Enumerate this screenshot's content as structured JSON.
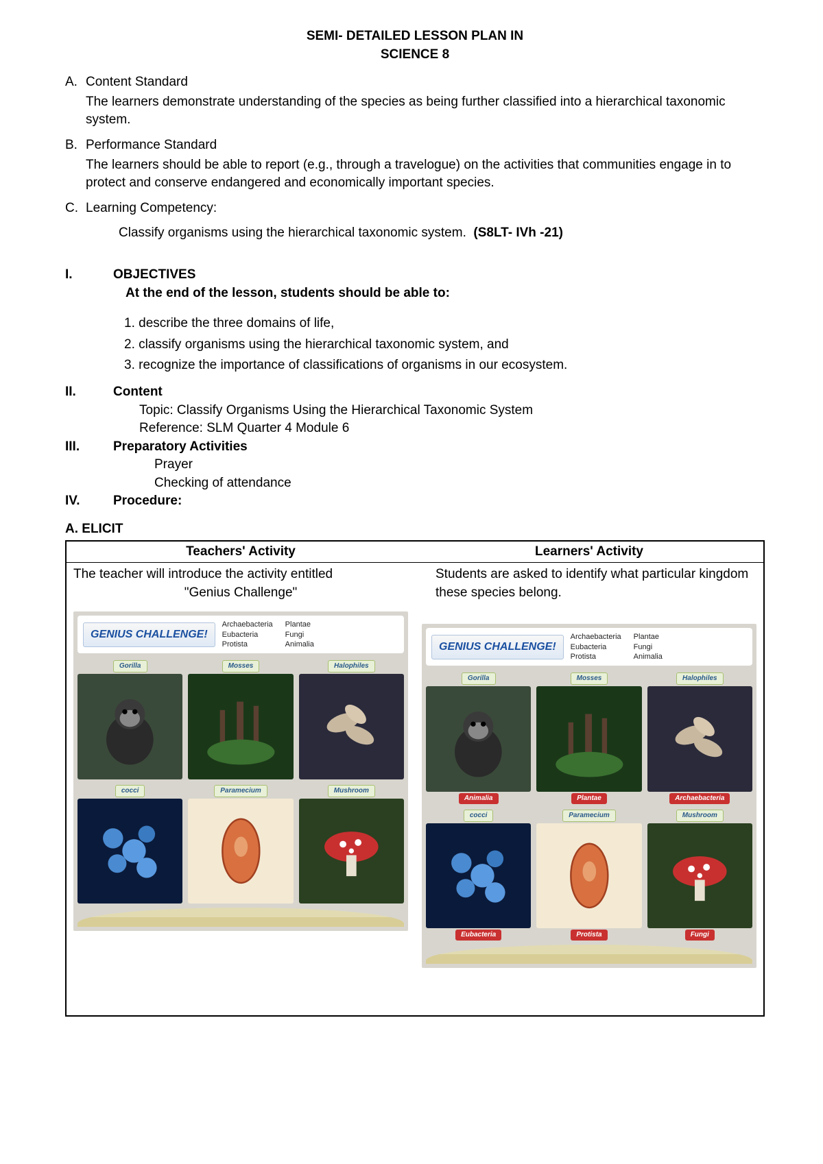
{
  "title": {
    "line1": "SEMI- DETAILED LESSON PLAN IN",
    "line2": "SCIENCE 8"
  },
  "standards": [
    {
      "letter": "A.",
      "label": "Content Standard",
      "text": "The learners demonstrate understanding of the species as being further classified into a hierarchical taxonomic system."
    },
    {
      "letter": "B.",
      "label": "Performance Standard",
      "text": "The learners should be able to report (e.g., through a travelogue) on the activities that communities engage in to protect and conserve endangered and economically important species."
    },
    {
      "letter": "C.",
      "label": "Learning Competency:",
      "text": ""
    }
  ],
  "competency": {
    "text": "Classify organisms using the hierarchical taxonomic system.",
    "code": "(S8LT- IVh -21)"
  },
  "sections": {
    "objectives": {
      "num": "I.",
      "label": "OBJECTIVES",
      "intro": "At the end of the lesson, students should be able to:",
      "items": [
        "1. describe the three domains of life,",
        "2. classify organisms using the hierarchical taxonomic system, and",
        "3. recognize the importance of classifications of organisms in our ecosystem."
      ]
    },
    "content": {
      "num": "II.",
      "label": "Content",
      "topic": "Topic: Classify Organisms Using the Hierarchical Taxonomic System",
      "reference": "Reference: SLM Quarter 4 Module 6"
    },
    "prep": {
      "num": "III.",
      "label": "Preparatory Activities",
      "items": [
        "Prayer",
        "Checking of attendance"
      ]
    },
    "procedure": {
      "num": "IV.",
      "label": "Procedure:"
    }
  },
  "elicit": {
    "label": "A. ELICIT",
    "headers": {
      "teacher": "Teachers' Activity",
      "learner": "Learners' Activity"
    },
    "teacher_text": "The teacher will introduce the activity entitled",
    "teacher_sub": "\"Genius Challenge\"",
    "learner_text": "Students are asked to identify what particular kingdom these species belong."
  },
  "challenge": {
    "title": "GENIUS CHALLENGE!",
    "kingdoms_col1": [
      "Archaebacteria",
      "Eubacteria",
      "Protista"
    ],
    "kingdoms_col2": [
      "Plantae",
      "Fungi",
      "Animalia"
    ],
    "tiles": [
      {
        "name": "Gorilla",
        "answer": "Animalia",
        "bg": "#3a4a3a",
        "icon": "gorilla"
      },
      {
        "name": "Mosses",
        "answer": "Plantae",
        "bg": "#1a3818",
        "icon": "moss"
      },
      {
        "name": "Halophiles",
        "answer": "Archaebacteria",
        "bg": "#2a2a3a",
        "icon": "halo"
      },
      {
        "name": "cocci",
        "answer": "Eubacteria",
        "bg": "#0a1a3a",
        "icon": "cocci"
      },
      {
        "name": "Paramecium",
        "answer": "Protista",
        "bg": "#f4ead4",
        "icon": "para"
      },
      {
        "name": "Mushroom",
        "answer": "Fungi",
        "bg": "#2a4020",
        "icon": "mush"
      }
    ]
  }
}
